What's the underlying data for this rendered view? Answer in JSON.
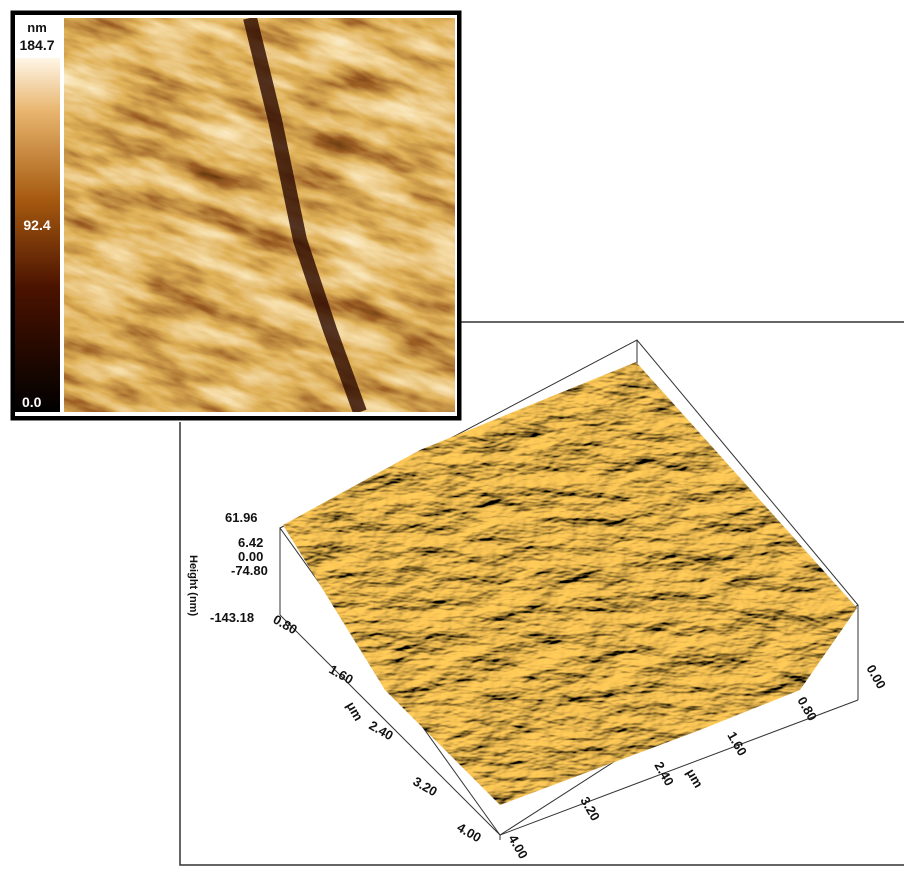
{
  "colorbar": {
    "unit": "nm",
    "max": "184.7",
    "mid": "92.4",
    "min": "0.0"
  },
  "surface": {
    "z_axis": {
      "label": "Height (nm)",
      "ticks": [
        "61.96",
        "6.42",
        "0.00",
        "-74.80",
        "-143.18"
      ]
    },
    "left_axis": {
      "label": "μm",
      "ticks": [
        "0.80",
        "1.60",
        "2.40",
        "3.20",
        "4.00"
      ]
    },
    "right_axis": {
      "label": "μm",
      "ticks": [
        "0.80",
        "1.60",
        "2.40",
        "3.20",
        "4.00"
      ]
    },
    "corner": "0.00"
  }
}
